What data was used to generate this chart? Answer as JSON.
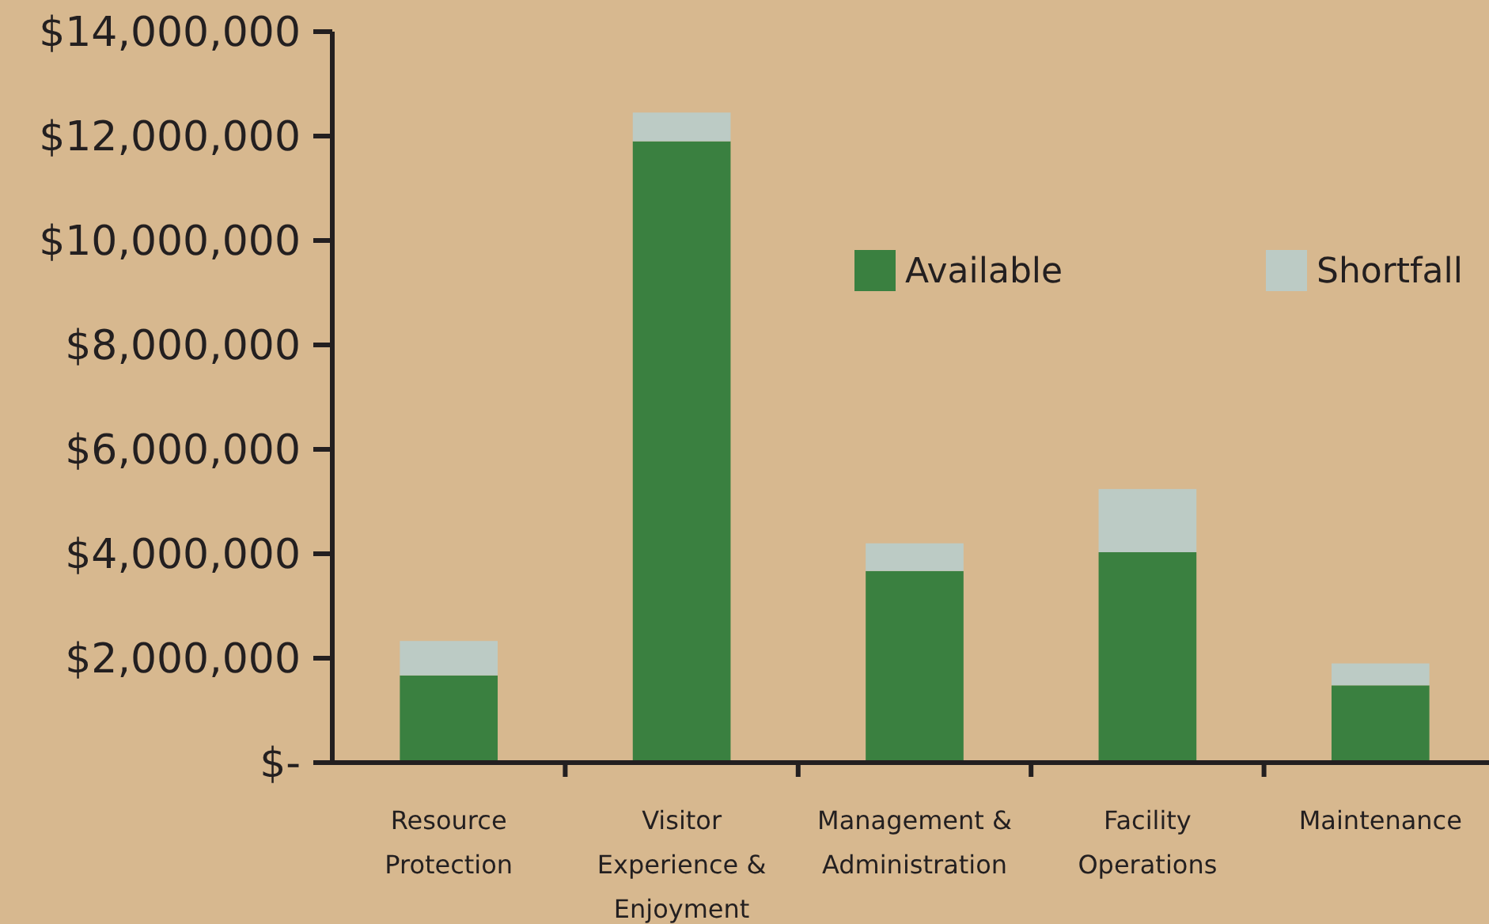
{
  "chart_data": {
    "type": "bar",
    "stacked": true,
    "categories": [
      "Resource Protection",
      "Visitor Experience & Enjoyment",
      "Management & Administration",
      "Facility Operations",
      "Maintenance"
    ],
    "series": [
      {
        "name": "Available",
        "color": "#3a8040",
        "values": [
          1670000,
          11900000,
          3670000,
          4030000,
          1480000
        ]
      },
      {
        "name": "Shortfall",
        "color": "#bccbc5",
        "values": [
          660000,
          550000,
          530000,
          1210000,
          420000
        ]
      }
    ],
    "ylim": [
      0,
      14000000
    ],
    "yticks": [
      {
        "value": 0,
        "label": "$-"
      },
      {
        "value": 2000000,
        "label": "$2,000,000"
      },
      {
        "value": 4000000,
        "label": "$4,000,000"
      },
      {
        "value": 6000000,
        "label": "$6,000,000"
      },
      {
        "value": 8000000,
        "label": "$8,000,000"
      },
      {
        "value": 10000000,
        "label": "$10,000,000"
      },
      {
        "value": 12000000,
        "label": "$12,000,000"
      },
      {
        "value": 14000000,
        "label": "$14,000,000"
      }
    ],
    "grid": false,
    "legend": "top right"
  }
}
